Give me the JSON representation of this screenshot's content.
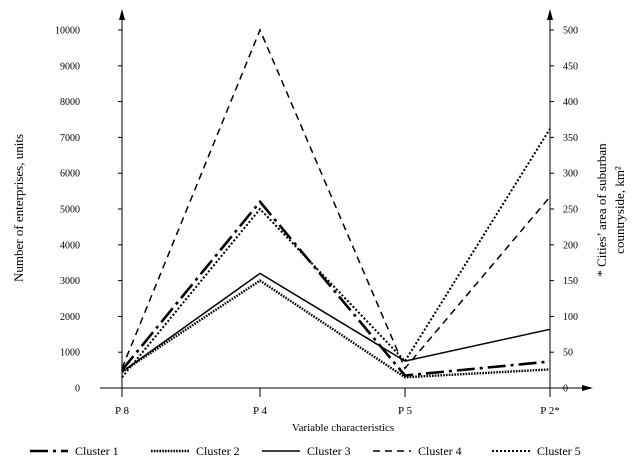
{
  "chart_data": {
    "type": "line",
    "xlabel": "Variable characteristics",
    "ylabel_left": "Number of enterprises, units",
    "ylabel_right_lines": [
      "* Cities’ area of suburban",
      "countryside, km²"
    ],
    "categories": [
      "P 8",
      "P 4",
      "P 5",
      "P 2*"
    ],
    "ylim_left": [
      0,
      10000
    ],
    "yticks_left": [
      0,
      1000,
      2000,
      3000,
      4000,
      5000,
      6000,
      7000,
      8000,
      9000,
      10000
    ],
    "ylim_right": [
      0,
      500
    ],
    "yticks_right": [
      0,
      50,
      100,
      150,
      200,
      250,
      300,
      350,
      400,
      450,
      500
    ],
    "right_axis_applies_to": "P 2*",
    "series": [
      {
        "name": "Cluster 1",
        "values": [
          500,
          5200,
          350,
          37
        ],
        "dash": "18,5,3,5",
        "width": 2.6
      },
      {
        "name": "Cluster 2",
        "values": [
          450,
          3000,
          300,
          26
        ],
        "dash": "1.6,1.2",
        "width": 2.4
      },
      {
        "name": "Cluster 3",
        "values": [
          450,
          3200,
          750,
          82
        ],
        "dash": "",
        "width": 1.5
      },
      {
        "name": "Cluster 4",
        "values": [
          550,
          10000,
          550,
          267
        ],
        "dash": "7,5",
        "width": 1.5
      },
      {
        "name": "Cluster 5",
        "values": [
          300,
          5000,
          750,
          362
        ],
        "dash": "2,2",
        "width": 2
      }
    ],
    "grid": false,
    "legend_position": "bottom"
  }
}
